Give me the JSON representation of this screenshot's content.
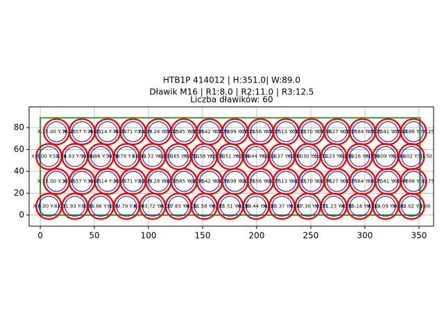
{
  "chart_data": {
    "type": "glands",
    "title": [
      "HTB1P 414012 | H:351.0| W:89.0",
      "Dławik M16 | R1:8.0 | R2:11.0 | R3:12.5",
      "Liczba dławików: 60"
    ],
    "box": {
      "width": 351,
      "height": 89,
      "color": "#2ca02c"
    },
    "r1": 8,
    "r2": 11,
    "r3": 12.5,
    "inner_color": "#0000ff",
    "outer_color": "#ff0000",
    "xlim": [
      -10.3,
      363.5
    ],
    "ylim": [
      -10.2,
      99
    ],
    "xticks": [
      0,
      50,
      100,
      150,
      200,
      250,
      300,
      350
    ],
    "yticks": [
      0,
      20,
      40,
      60,
      80
    ],
    "grid": true,
    "points": [
      {
        "x": 8.0,
        "y": 8.0,
        "label": "X:8.00 Y:8.00"
      },
      {
        "x": 31.93,
        "y": 8.0,
        "label": "X:31.93 Y:8.00"
      },
      {
        "x": 55.86,
        "y": 8.0,
        "label": "X:55.86 Y:8.00"
      },
      {
        "x": 79.79,
        "y": 8.0,
        "label": "X:79.79 Y:8.00"
      },
      {
        "x": 103.72,
        "y": 8.0,
        "label": "X:103.72 Y:8.00"
      },
      {
        "x": 127.65,
        "y": 8.0,
        "label": "X:127.65 Y:8.00"
      },
      {
        "x": 151.58,
        "y": 8.0,
        "label": "X:151.58 Y:8.00"
      },
      {
        "x": 175.51,
        "y": 8.0,
        "label": "X:175.51 Y:8.00"
      },
      {
        "x": 199.44,
        "y": 8.0,
        "label": "X:199.44 Y:8.00"
      },
      {
        "x": 223.37,
        "y": 8.0,
        "label": "X:223.37 Y:8.00"
      },
      {
        "x": 247.3,
        "y": 8.0,
        "label": "X:247.30 Y:8.00"
      },
      {
        "x": 271.23,
        "y": 8.0,
        "label": "X:271.23 Y:8.00"
      },
      {
        "x": 295.16,
        "y": 8.0,
        "label": "X:295.16 Y:8.00"
      },
      {
        "x": 319.09,
        "y": 8.0,
        "label": "X:319.09 Y:8.00"
      },
      {
        "x": 343.02,
        "y": 8.0,
        "label": "X:343.02 Y:8.00"
      },
      {
        "x": 15.0,
        "y": 30.75,
        "label": "X:15.00 Y:30.75"
      },
      {
        "x": 38.57,
        "y": 30.75,
        "label": "X:38.57 Y:30.75"
      },
      {
        "x": 62.14,
        "y": 30.75,
        "label": "X:62.14 Y:30.75"
      },
      {
        "x": 85.71,
        "y": 30.75,
        "label": "X:85.71 Y:30.75"
      },
      {
        "x": 109.28,
        "y": 30.75,
        "label": "X:109.28 Y:30.75"
      },
      {
        "x": 132.85,
        "y": 30.75,
        "label": "X:132.85 Y:30.75"
      },
      {
        "x": 156.42,
        "y": 30.75,
        "label": "X:156.42 Y:30.75"
      },
      {
        "x": 179.99,
        "y": 30.75,
        "label": "X:179.99 Y:30.75"
      },
      {
        "x": 203.56,
        "y": 30.75,
        "label": "X:203.56 Y:30.75"
      },
      {
        "x": 227.13,
        "y": 30.75,
        "label": "X:227.13 Y:30.75"
      },
      {
        "x": 250.7,
        "y": 30.75,
        "label": "X:250.70 Y:30.75"
      },
      {
        "x": 274.27,
        "y": 30.75,
        "label": "X:274.27 Y:30.75"
      },
      {
        "x": 297.84,
        "y": 30.75,
        "label": "X:297.84 Y:30.75"
      },
      {
        "x": 321.41,
        "y": 30.75,
        "label": "X:321.41 Y:30.75"
      },
      {
        "x": 344.98,
        "y": 30.75,
        "label": "X:344.98 Y:30.75"
      },
      {
        "x": 8.0,
        "y": 53.5,
        "label": "X:8.00 Y:53.50"
      },
      {
        "x": 31.93,
        "y": 53.5,
        "label": "X:31.93 Y:53.50"
      },
      {
        "x": 55.86,
        "y": 53.5,
        "label": "X:55.86 Y:53.50"
      },
      {
        "x": 79.79,
        "y": 53.5,
        "label": "X:79.79 Y:53.50"
      },
      {
        "x": 103.72,
        "y": 53.5,
        "label": "X:103.72 Y:53.50"
      },
      {
        "x": 127.65,
        "y": 53.5,
        "label": "X:127.65 Y:53.50"
      },
      {
        "x": 151.58,
        "y": 53.5,
        "label": "X:151.58 Y:53.50"
      },
      {
        "x": 175.51,
        "y": 53.5,
        "label": "X:175.51 Y:53.50"
      },
      {
        "x": 199.44,
        "y": 53.5,
        "label": "X:199.44 Y:53.50"
      },
      {
        "x": 223.37,
        "y": 53.5,
        "label": "X:223.37 Y:53.50"
      },
      {
        "x": 247.3,
        "y": 53.5,
        "label": "X:247.30 Y:53.50"
      },
      {
        "x": 271.23,
        "y": 53.5,
        "label": "X:271.23 Y:53.50"
      },
      {
        "x": 295.16,
        "y": 53.5,
        "label": "X:295.16 Y:53.50"
      },
      {
        "x": 319.09,
        "y": 53.5,
        "label": "X:319.09 Y:53.50"
      },
      {
        "x": 343.02,
        "y": 53.5,
        "label": "X:343.02 Y:53.50"
      },
      {
        "x": 15.0,
        "y": 76.25,
        "label": "X:15.00 Y:76.25"
      },
      {
        "x": 38.57,
        "y": 76.25,
        "label": "X:38.57 Y:76.25"
      },
      {
        "x": 62.14,
        "y": 76.25,
        "label": "X:62.14 Y:76.25"
      },
      {
        "x": 85.71,
        "y": 76.25,
        "label": "X:85.71 Y:76.25"
      },
      {
        "x": 109.28,
        "y": 76.25,
        "label": "X:109.28 Y:76.25"
      },
      {
        "x": 132.85,
        "y": 76.25,
        "label": "X:132.85 Y:76.25"
      },
      {
        "x": 156.42,
        "y": 76.25,
        "label": "X:156.42 Y:76.25"
      },
      {
        "x": 179.99,
        "y": 76.25,
        "label": "X:179.99 Y:76.25"
      },
      {
        "x": 203.56,
        "y": 76.25,
        "label": "X:203.56 Y:76.25"
      },
      {
        "x": 227.13,
        "y": 76.25,
        "label": "X:227.13 Y:76.25"
      },
      {
        "x": 250.7,
        "y": 76.25,
        "label": "X:250.70 Y:76.25"
      },
      {
        "x": 274.27,
        "y": 76.25,
        "label": "X:274.27 Y:76.25"
      },
      {
        "x": 297.84,
        "y": 76.25,
        "label": "X:297.84 Y:76.25"
      },
      {
        "x": 321.41,
        "y": 76.25,
        "label": "X:321.41 Y:76.25"
      },
      {
        "x": 344.98,
        "y": 76.25,
        "label": "X:344.98 Y:76.25"
      }
    ]
  }
}
